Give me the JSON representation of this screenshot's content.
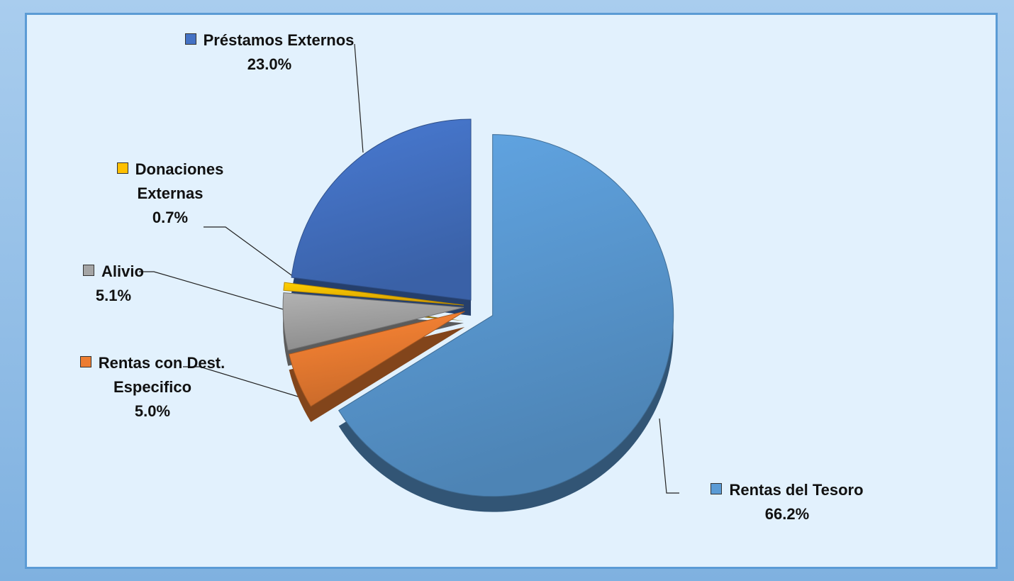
{
  "chart_data": {
    "type": "pie",
    "categories": [
      "Rentas del Tesoro",
      "Rentas con Dest. Especifico",
      "Alivio",
      "Donaciones Externas",
      "Préstamos Externos"
    ],
    "values": [
      66.2,
      5.0,
      5.1,
      0.7,
      23.0
    ],
    "value_labels": [
      "66.2%",
      "5.0%",
      "5.1%",
      "0.7%",
      "23.0%"
    ],
    "colors": [
      "#5b9bd5",
      "#ed7d31",
      "#a5a5a5",
      "#ffc000",
      "#4472c4"
    ]
  }
}
